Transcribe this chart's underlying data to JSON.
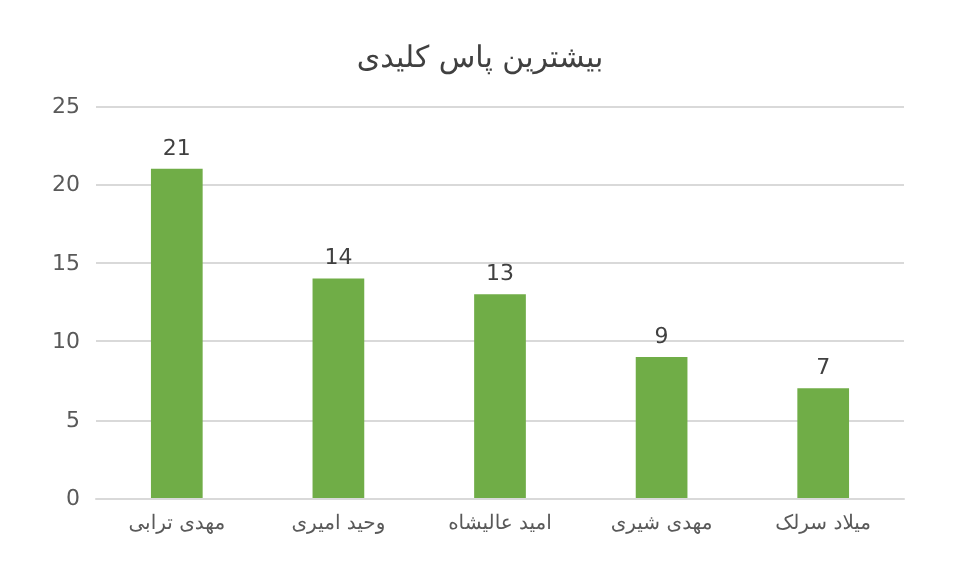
{
  "chart_data": {
    "type": "bar",
    "title": "بیشترین پاس کلیدی",
    "categories": [
      "مهدی ترابی",
      "وحید امیری",
      "امید عالیشاه",
      "مهدی شیری",
      "میلاد سرلک"
    ],
    "values": [
      21,
      14,
      13,
      9,
      7
    ],
    "color": "#70ad47",
    "ylim": [
      0,
      25
    ],
    "yticks": [
      0,
      5,
      10,
      15,
      20,
      25
    ],
    "grid": "y",
    "data_labels": true
  }
}
